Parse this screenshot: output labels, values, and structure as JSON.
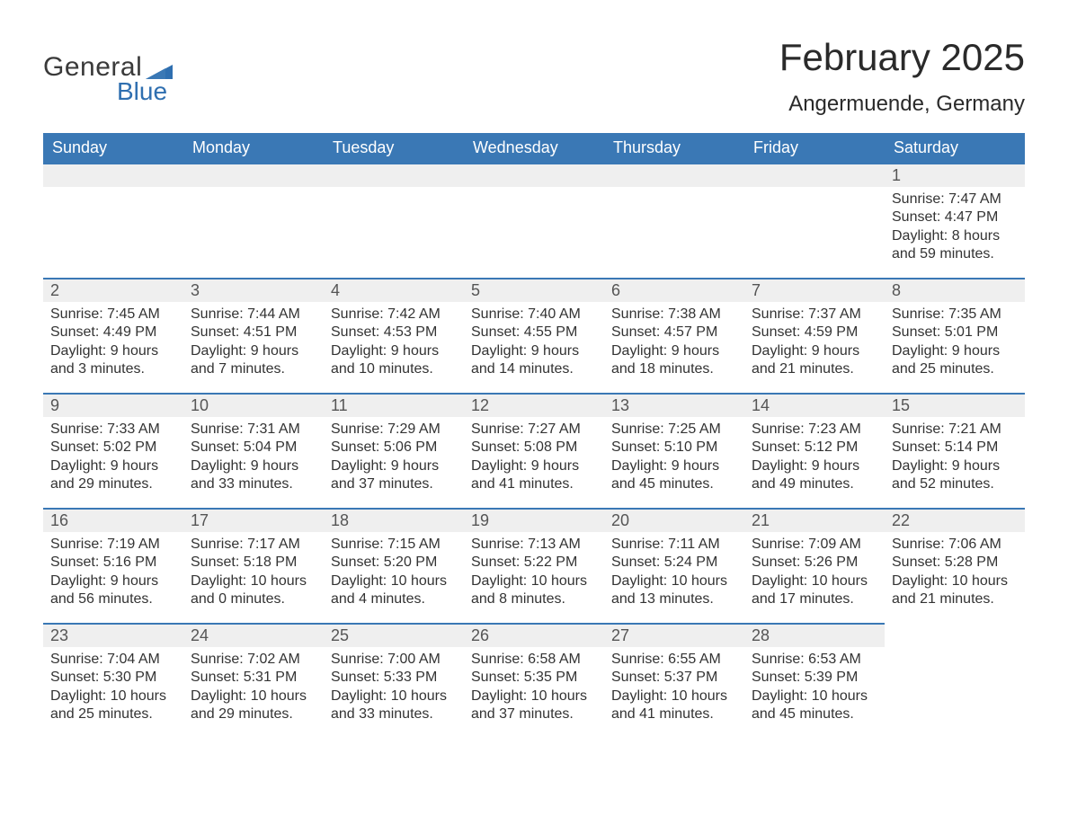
{
  "brand": {
    "word1": "General",
    "word2": "Blue",
    "text_color": "#3a3a3a",
    "accent_color": "#2f6fb0"
  },
  "header": {
    "title": "February 2025",
    "location": "Angermuende, Germany"
  },
  "colors": {
    "header_row_bg": "#3a78b5",
    "header_row_text": "#ffffff",
    "daynum_bg": "#efefef",
    "daynum_border": "#3a78b5",
    "body_text": "#333333",
    "page_bg": "#ffffff"
  },
  "day_headers": [
    "Sunday",
    "Monday",
    "Tuesday",
    "Wednesday",
    "Thursday",
    "Friday",
    "Saturday"
  ],
  "weeks": [
    [
      {
        "empty": true
      },
      {
        "empty": true
      },
      {
        "empty": true
      },
      {
        "empty": true
      },
      {
        "empty": true
      },
      {
        "empty": true
      },
      {
        "day": "1",
        "sunrise": "Sunrise: 7:47 AM",
        "sunset": "Sunset: 4:47 PM",
        "daylight1": "Daylight: 8 hours",
        "daylight2": "and 59 minutes."
      }
    ],
    [
      {
        "day": "2",
        "sunrise": "Sunrise: 7:45 AM",
        "sunset": "Sunset: 4:49 PM",
        "daylight1": "Daylight: 9 hours",
        "daylight2": "and 3 minutes."
      },
      {
        "day": "3",
        "sunrise": "Sunrise: 7:44 AM",
        "sunset": "Sunset: 4:51 PM",
        "daylight1": "Daylight: 9 hours",
        "daylight2": "and 7 minutes."
      },
      {
        "day": "4",
        "sunrise": "Sunrise: 7:42 AM",
        "sunset": "Sunset: 4:53 PM",
        "daylight1": "Daylight: 9 hours",
        "daylight2": "and 10 minutes."
      },
      {
        "day": "5",
        "sunrise": "Sunrise: 7:40 AM",
        "sunset": "Sunset: 4:55 PM",
        "daylight1": "Daylight: 9 hours",
        "daylight2": "and 14 minutes."
      },
      {
        "day": "6",
        "sunrise": "Sunrise: 7:38 AM",
        "sunset": "Sunset: 4:57 PM",
        "daylight1": "Daylight: 9 hours",
        "daylight2": "and 18 minutes."
      },
      {
        "day": "7",
        "sunrise": "Sunrise: 7:37 AM",
        "sunset": "Sunset: 4:59 PM",
        "daylight1": "Daylight: 9 hours",
        "daylight2": "and 21 minutes."
      },
      {
        "day": "8",
        "sunrise": "Sunrise: 7:35 AM",
        "sunset": "Sunset: 5:01 PM",
        "daylight1": "Daylight: 9 hours",
        "daylight2": "and 25 minutes."
      }
    ],
    [
      {
        "day": "9",
        "sunrise": "Sunrise: 7:33 AM",
        "sunset": "Sunset: 5:02 PM",
        "daylight1": "Daylight: 9 hours",
        "daylight2": "and 29 minutes."
      },
      {
        "day": "10",
        "sunrise": "Sunrise: 7:31 AM",
        "sunset": "Sunset: 5:04 PM",
        "daylight1": "Daylight: 9 hours",
        "daylight2": "and 33 minutes."
      },
      {
        "day": "11",
        "sunrise": "Sunrise: 7:29 AM",
        "sunset": "Sunset: 5:06 PM",
        "daylight1": "Daylight: 9 hours",
        "daylight2": "and 37 minutes."
      },
      {
        "day": "12",
        "sunrise": "Sunrise: 7:27 AM",
        "sunset": "Sunset: 5:08 PM",
        "daylight1": "Daylight: 9 hours",
        "daylight2": "and 41 minutes."
      },
      {
        "day": "13",
        "sunrise": "Sunrise: 7:25 AM",
        "sunset": "Sunset: 5:10 PM",
        "daylight1": "Daylight: 9 hours",
        "daylight2": "and 45 minutes."
      },
      {
        "day": "14",
        "sunrise": "Sunrise: 7:23 AM",
        "sunset": "Sunset: 5:12 PM",
        "daylight1": "Daylight: 9 hours",
        "daylight2": "and 49 minutes."
      },
      {
        "day": "15",
        "sunrise": "Sunrise: 7:21 AM",
        "sunset": "Sunset: 5:14 PM",
        "daylight1": "Daylight: 9 hours",
        "daylight2": "and 52 minutes."
      }
    ],
    [
      {
        "day": "16",
        "sunrise": "Sunrise: 7:19 AM",
        "sunset": "Sunset: 5:16 PM",
        "daylight1": "Daylight: 9 hours",
        "daylight2": "and 56 minutes."
      },
      {
        "day": "17",
        "sunrise": "Sunrise: 7:17 AM",
        "sunset": "Sunset: 5:18 PM",
        "daylight1": "Daylight: 10 hours",
        "daylight2": "and 0 minutes."
      },
      {
        "day": "18",
        "sunrise": "Sunrise: 7:15 AM",
        "sunset": "Sunset: 5:20 PM",
        "daylight1": "Daylight: 10 hours",
        "daylight2": "and 4 minutes."
      },
      {
        "day": "19",
        "sunrise": "Sunrise: 7:13 AM",
        "sunset": "Sunset: 5:22 PM",
        "daylight1": "Daylight: 10 hours",
        "daylight2": "and 8 minutes."
      },
      {
        "day": "20",
        "sunrise": "Sunrise: 7:11 AM",
        "sunset": "Sunset: 5:24 PM",
        "daylight1": "Daylight: 10 hours",
        "daylight2": "and 13 minutes."
      },
      {
        "day": "21",
        "sunrise": "Sunrise: 7:09 AM",
        "sunset": "Sunset: 5:26 PM",
        "daylight1": "Daylight: 10 hours",
        "daylight2": "and 17 minutes."
      },
      {
        "day": "22",
        "sunrise": "Sunrise: 7:06 AM",
        "sunset": "Sunset: 5:28 PM",
        "daylight1": "Daylight: 10 hours",
        "daylight2": "and 21 minutes."
      }
    ],
    [
      {
        "day": "23",
        "sunrise": "Sunrise: 7:04 AM",
        "sunset": "Sunset: 5:30 PM",
        "daylight1": "Daylight: 10 hours",
        "daylight2": "and 25 minutes."
      },
      {
        "day": "24",
        "sunrise": "Sunrise: 7:02 AM",
        "sunset": "Sunset: 5:31 PM",
        "daylight1": "Daylight: 10 hours",
        "daylight2": "and 29 minutes."
      },
      {
        "day": "25",
        "sunrise": "Sunrise: 7:00 AM",
        "sunset": "Sunset: 5:33 PM",
        "daylight1": "Daylight: 10 hours",
        "daylight2": "and 33 minutes."
      },
      {
        "day": "26",
        "sunrise": "Sunrise: 6:58 AM",
        "sunset": "Sunset: 5:35 PM",
        "daylight1": "Daylight: 10 hours",
        "daylight2": "and 37 minutes."
      },
      {
        "day": "27",
        "sunrise": "Sunrise: 6:55 AM",
        "sunset": "Sunset: 5:37 PM",
        "daylight1": "Daylight: 10 hours",
        "daylight2": "and 41 minutes."
      },
      {
        "day": "28",
        "sunrise": "Sunrise: 6:53 AM",
        "sunset": "Sunset: 5:39 PM",
        "daylight1": "Daylight: 10 hours",
        "daylight2": "and 45 minutes."
      },
      {
        "empty": true
      }
    ]
  ]
}
